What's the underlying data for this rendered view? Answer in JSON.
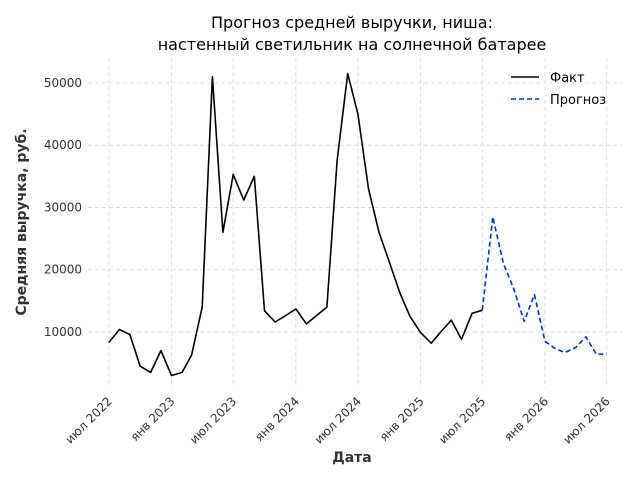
{
  "chart_data": {
    "type": "line",
    "title": "Прогноз средней выручки, ниша:",
    "subtitle": "настенный светильник на солнечной батарее",
    "xlabel": "Дата",
    "ylabel": "Средняя выручка, руб.",
    "x_ticks": [
      "июл 2022",
      "янв 2023",
      "июл 2023",
      "янв 2024",
      "июл 2024",
      "янв 2025",
      "июл 2025",
      "янв 2026",
      "июл 2026"
    ],
    "y_ticks": [
      10000,
      20000,
      30000,
      40000,
      50000
    ],
    "ylim": [
      1000,
      54000
    ],
    "xlim": [
      "2022-05-01",
      "2026-08-15"
    ],
    "grid": true,
    "legend_position": "top-right",
    "series": [
      {
        "name": "Факт",
        "color": "#000000",
        "style": "solid",
        "x": [
          "2022-07-01",
          "2022-08-01",
          "2022-09-01",
          "2022-10-01",
          "2022-11-01",
          "2022-12-01",
          "2023-01-01",
          "2023-02-01",
          "2023-03-01",
          "2023-04-01",
          "2023-05-01",
          "2023-06-01",
          "2023-07-01",
          "2023-08-01",
          "2023-09-01",
          "2023-10-01",
          "2023-11-01",
          "2023-12-01",
          "2024-01-01",
          "2024-02-01",
          "2024-03-01",
          "2024-04-01",
          "2024-05-01",
          "2024-06-01",
          "2024-07-01",
          "2024-08-01",
          "2024-09-01",
          "2024-10-01",
          "2024-11-01",
          "2024-12-01",
          "2025-01-01",
          "2025-02-01",
          "2025-03-01",
          "2025-04-01",
          "2025-05-01",
          "2025-06-01",
          "2025-07-01"
        ],
        "y": [
          8300,
          10400,
          9600,
          4500,
          3500,
          7000,
          3000,
          3500,
          6300,
          14000,
          51000,
          26000,
          35300,
          31200,
          35000,
          13400,
          11600,
          12600,
          13700,
          11300,
          12600,
          14000,
          37500,
          51500,
          45000,
          33000,
          26000,
          21300,
          16300,
          12500,
          9900,
          8200,
          10000,
          11900,
          8800,
          13000,
          13500
        ]
      },
      {
        "name": "Прогноз",
        "color": "#0033cc",
        "style": "dashed",
        "x": [
          "2025-07-01",
          "2025-08-01",
          "2025-09-01",
          "2025-10-01",
          "2025-11-01",
          "2025-12-01",
          "2026-01-01",
          "2026-02-01",
          "2026-03-01",
          "2026-04-01",
          "2026-05-01",
          "2026-06-01",
          "2026-07-01"
        ],
        "y": [
          13500,
          28500,
          21000,
          17000,
          11700,
          16000,
          8500,
          7300,
          6700,
          7500,
          9200,
          6400,
          6500
        ]
      }
    ]
  }
}
